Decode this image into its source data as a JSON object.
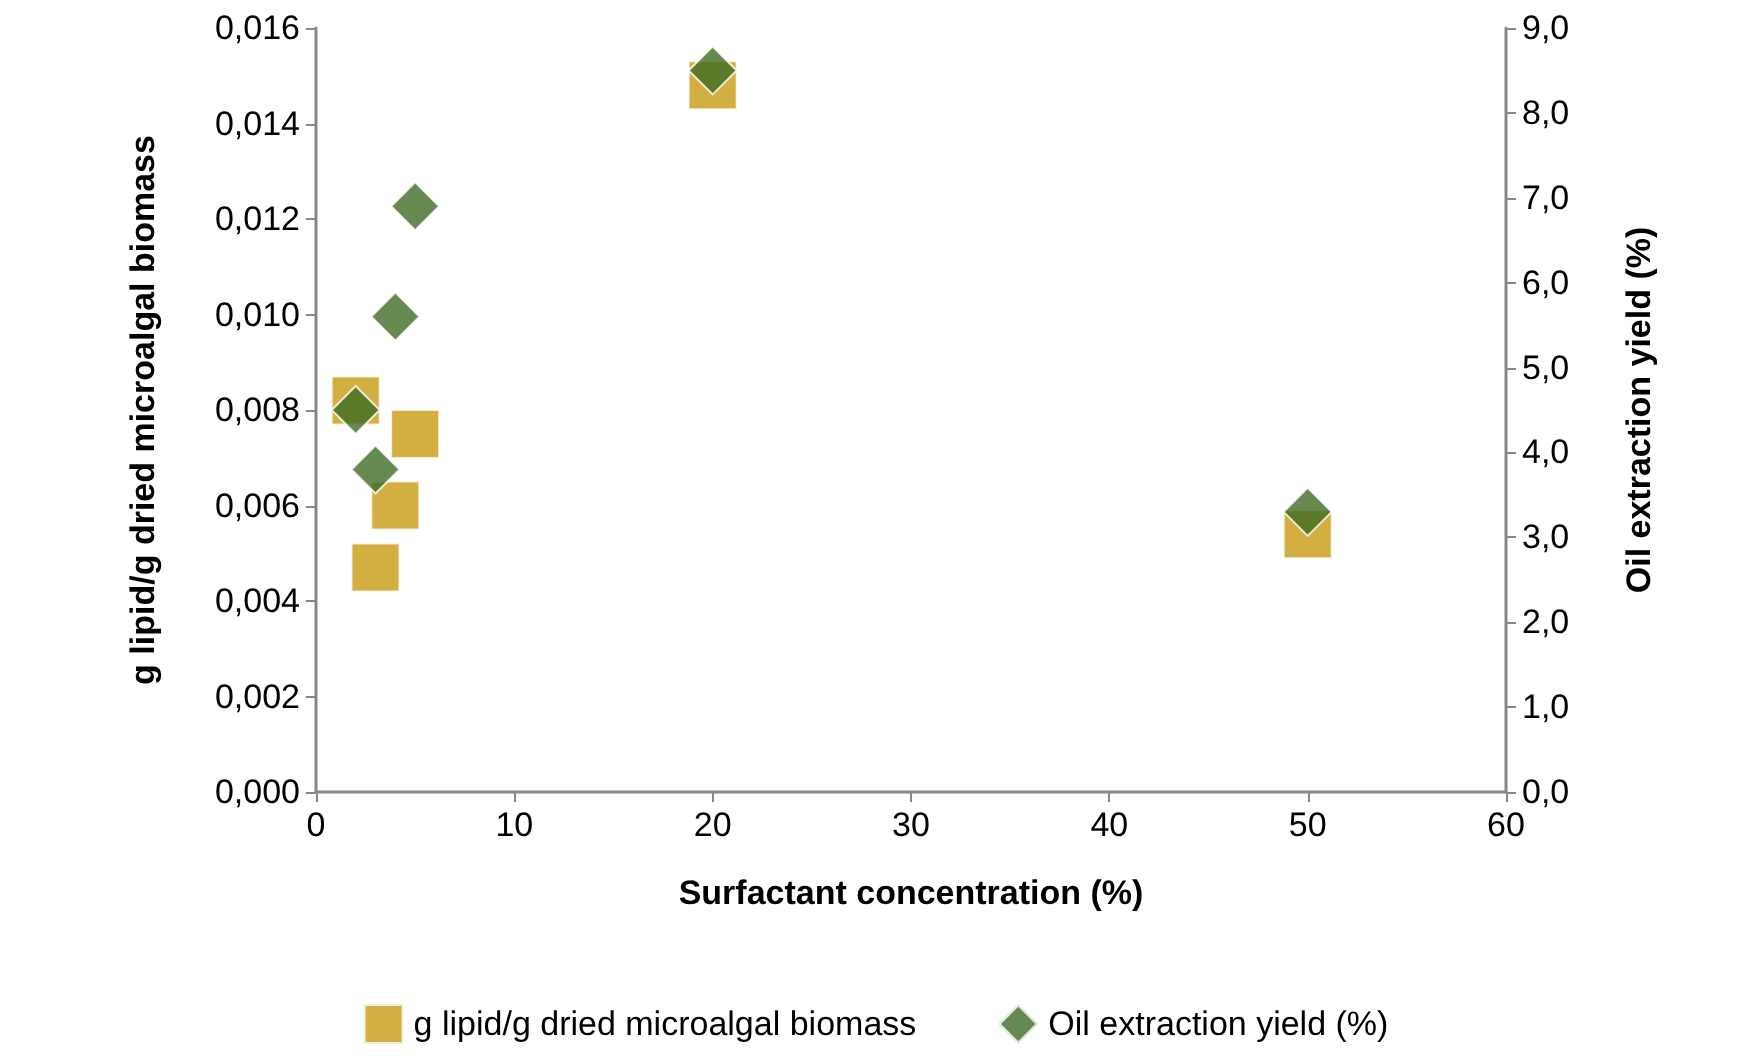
{
  "chart_data": {
    "type": "scatter",
    "xlabel": "Surfactant concentration (%)",
    "ylabel": "g lipid/g dried microalgal biomass",
    "y2label": "Oil extraction yield (%)",
    "xlim": [
      0,
      60
    ],
    "xticks": [
      0,
      10,
      20,
      30,
      40,
      50,
      60
    ],
    "ylim": [
      0,
      0.016
    ],
    "yticks": [
      {
        "value": 0,
        "label": "0,000"
      },
      {
        "value": 0.002,
        "label": "0,002"
      },
      {
        "value": 0.004,
        "label": "0,004"
      },
      {
        "value": 0.006,
        "label": "0,006"
      },
      {
        "value": 0.008,
        "label": "0,008"
      },
      {
        "value": 0.01,
        "label": "0,010"
      },
      {
        "value": 0.012,
        "label": "0,012"
      },
      {
        "value": 0.014,
        "label": "0,014"
      },
      {
        "value": 0.016,
        "label": "0,016"
      }
    ],
    "y2lim": [
      0,
      9
    ],
    "y2ticks": [
      {
        "value": 0,
        "label": "0,0"
      },
      {
        "value": 1,
        "label": "1,0"
      },
      {
        "value": 2,
        "label": "2,0"
      },
      {
        "value": 3,
        "label": "3,0"
      },
      {
        "value": 4,
        "label": "4,0"
      },
      {
        "value": 5,
        "label": "5,0"
      },
      {
        "value": 6,
        "label": "6,0"
      },
      {
        "value": 7,
        "label": "7,0"
      },
      {
        "value": 8,
        "label": "8,0"
      },
      {
        "value": 9,
        "label": "9,0"
      }
    ],
    "grid": false,
    "legend": "bottom",
    "series": [
      {
        "name": "g lipid/g dried microalgal biomass",
        "color": "#c89a10",
        "marker": "square",
        "x": [
          2,
          5,
          4,
          3,
          20,
          50
        ],
        "values": [
          0.0082,
          0.0075,
          0.006,
          0.0047,
          0.0148,
          0.0054
        ]
      },
      {
        "name": "Oil extraction yield (%)",
        "color": "#3f6b22",
        "marker": "diamond",
        "axis": "y2",
        "x": [
          5,
          4,
          2,
          3,
          20,
          50
        ],
        "values": [
          6.9,
          5.6,
          4.5,
          3.8,
          8.5,
          3.3
        ]
      }
    ]
  }
}
